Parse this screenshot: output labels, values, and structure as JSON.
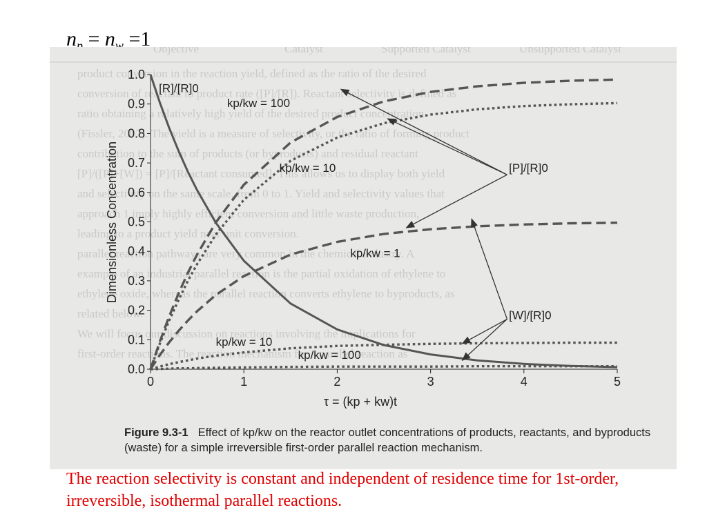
{
  "slide": {
    "equation": {
      "n": "n",
      "p": "p",
      "w": "w",
      "eq": "=",
      "one": "1"
    },
    "bottom_note": "The reaction selectivity is constant and independent of residence time for 1st-order, irreversible, isothermal parallel reactions.",
    "caption_label": "Figure 9.3-1",
    "caption_text": "Effect of kp/kw on the reactor outlet concentrations of products, reactants, and byproducts (waste) for a simple irreversible first-order parallel reaction mechanism."
  },
  "colors": {
    "note": "#e00000",
    "curve": "#555555",
    "background": "#e8e8e6"
  },
  "chart_data": {
    "type": "line",
    "xlabel": "τ = (kp + kw)t",
    "ylabel": "Dimensionless Concentration",
    "xlim": [
      0,
      5
    ],
    "ylim": [
      0,
      1.0
    ],
    "xticks": [
      "0",
      "1",
      "2",
      "3",
      "4",
      "5"
    ],
    "yticks": [
      "0.0",
      "0.1",
      "0.2",
      "0.3",
      "0.4",
      "0.5",
      "0.6",
      "0.7",
      "0.8",
      "0.9",
      "1.0"
    ],
    "x": [
      0,
      0.1,
      0.2,
      0.3,
      0.4,
      0.5,
      0.7,
      1.0,
      1.5,
      2.0,
      2.5,
      3.0,
      3.5,
      4.0,
      4.5,
      5.0
    ],
    "series": [
      {
        "name": "[R]/[R]0",
        "style": "solid",
        "values": [
          1.0,
          0.905,
          0.819,
          0.741,
          0.67,
          0.607,
          0.497,
          0.368,
          0.223,
          0.135,
          0.082,
          0.05,
          0.03,
          0.018,
          0.011,
          0.007
        ]
      },
      {
        "name": "[P]/[R]0, kp/kw = 100",
        "style": "dashed",
        "values": [
          0.0,
          0.094,
          0.179,
          0.257,
          0.327,
          0.39,
          0.498,
          0.626,
          0.769,
          0.856,
          0.909,
          0.941,
          0.96,
          0.972,
          0.979,
          0.983
        ]
      },
      {
        "name": "[P]/[R]0, kp/kw = 10",
        "style": "dotted",
        "values": [
          0.0,
          0.087,
          0.165,
          0.235,
          0.3,
          0.357,
          0.457,
          0.575,
          0.707,
          0.786,
          0.835,
          0.864,
          0.882,
          0.893,
          0.899,
          0.903
        ]
      },
      {
        "name": "[P]/[R]0, kp/kw = 1",
        "style": "dashed",
        "values": [
          0.0,
          0.048,
          0.091,
          0.13,
          0.165,
          0.197,
          0.252,
          0.316,
          0.389,
          0.432,
          0.459,
          0.475,
          0.485,
          0.491,
          0.495,
          0.497
        ]
      },
      {
        "name": "[W]/[R]0, kp/kw = 10",
        "style": "dotted",
        "values": [
          0.0,
          0.009,
          0.017,
          0.024,
          0.03,
          0.036,
          0.046,
          0.057,
          0.071,
          0.079,
          0.083,
          0.086,
          0.088,
          0.089,
          0.09,
          0.09
        ]
      },
      {
        "name": "[W]/[R]0, kp/kw = 100",
        "style": "dotted",
        "values": [
          0.0,
          0.001,
          0.002,
          0.003,
          0.003,
          0.004,
          0.005,
          0.006,
          0.008,
          0.009,
          0.009,
          0.009,
          0.01,
          0.01,
          0.01,
          0.01
        ]
      }
    ],
    "annotations": [
      {
        "id": "r",
        "text": "[R]/[R]0"
      },
      {
        "id": "kp100",
        "text": "kp/kw = 100"
      },
      {
        "id": "kp10",
        "text": "kp/kw = 10"
      },
      {
        "id": "kp1",
        "text": "kp/kw = 1"
      },
      {
        "id": "p",
        "text": "[P]/[R]0"
      },
      {
        "id": "w",
        "text": "[W]/[R]0"
      },
      {
        "id": "w10",
        "text": "kp/kw = 10"
      },
      {
        "id": "w100",
        "text": "kp/kw = 100"
      }
    ]
  },
  "background_text": {
    "header": [
      "Objective",
      "Catalyst",
      "Supported Catalyst",
      "Unsupported Catalyst"
    ],
    "lines": [
      "product conversion in the reaction yield, defined as the ratio of the desired",
      "conversion of reactant to product rate ([P]/[R]). Reactant selectivity is defined as",
      "ratio obtaining a relatively high yield of the desired product concentration",
      "(Fissler, 2007). The yield is a measure of selectivity, or the ratio of forming product",
      "contribution to the sum of products (or byproducts) and residual reactant",
      "[P]/([P]+[W]) = [P]/[Reactant consumed]. This allows us to display both yield",
      "and selectivity on the same scale, from 0 to 1. Yield and selectivity values that",
      "approach 1 imply highly efficient conversion and little waste production,",
      "leading to a product yield near unit conversion.",
      "parallel reaction pathways are very common in the chemical industry. A",
      "example of an industrial parallel reaction is the partial oxidation of ethylene to",
      "ethylene oxide, whereas the parallel reaction converts ethylene to byproducts, as",
      "related below.",
      "We will focus our discussion on reactions involving the implications for",
      "first-order reactions. The reaction mechanism for a parallel reaction as"
    ]
  }
}
